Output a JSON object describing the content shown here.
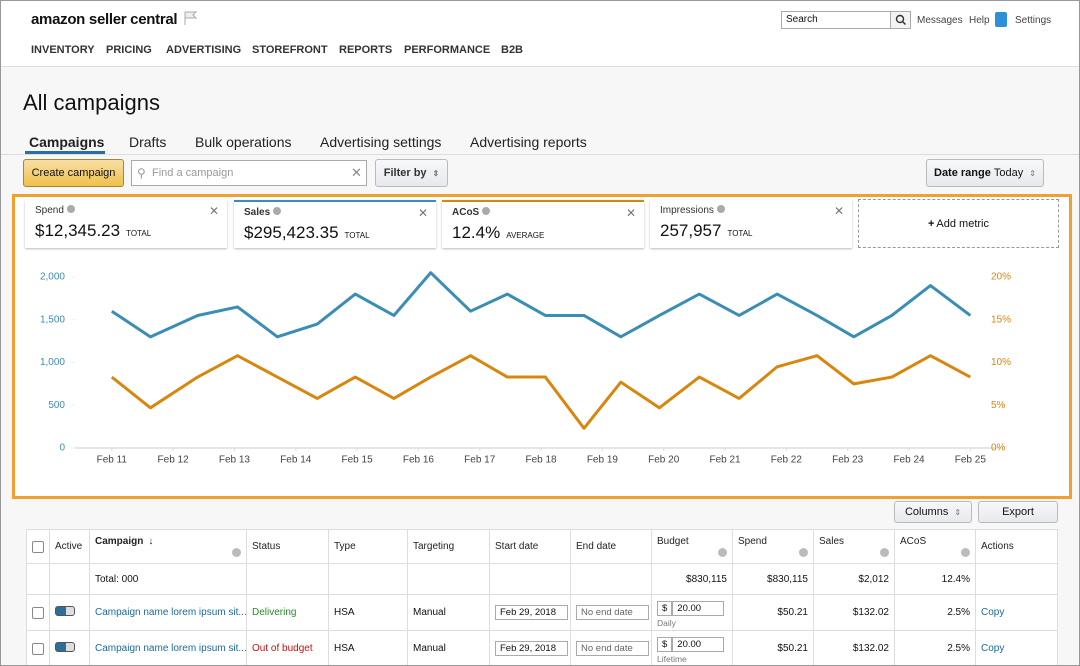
{
  "header": {
    "logo": "amazon seller central",
    "search_placeholder": "Search",
    "links": [
      "Messages",
      "Help",
      "Settings"
    ]
  },
  "nav": [
    "INVENTORY",
    "PRICING",
    "ADVERTISING",
    "STOREFRONT",
    "REPORTS",
    "PERFORMANCE",
    "B2B"
  ],
  "page_title": "All campaigns",
  "tabs": [
    "Campaigns",
    "Drafts",
    "Bulk operations",
    "Advertising settings",
    "Advertising reports"
  ],
  "toolbar": {
    "create": "Create campaign",
    "find_placeholder": "Find a campaign",
    "filter": "Filter by",
    "date_range_label": "Date range",
    "date_range_value": "Today"
  },
  "metrics": [
    {
      "name": "Spend",
      "value": "$12,345.23",
      "kind": "TOTAL"
    },
    {
      "name": "Sales",
      "value": "$295,423.35",
      "kind": "TOTAL"
    },
    {
      "name": "ACoS",
      "value": "12.4%",
      "kind": "AVERAGE"
    },
    {
      "name": "Impressions",
      "value": "257,957",
      "kind": "TOTAL"
    }
  ],
  "add_metric": "Add metric",
  "chart_data": {
    "type": "line",
    "x": [
      11.0,
      11.63,
      12.4,
      13.05,
      13.7,
      14.35,
      14.97,
      15.6,
      16.2,
      16.85,
      17.45,
      18.07,
      18.7,
      19.3,
      19.93,
      20.58,
      21.23,
      21.85,
      22.5,
      23.1,
      23.72,
      24.35,
      25.0
    ],
    "xlim": [
      10.4,
      25.5
    ],
    "xticks": [
      {
        "value": 11,
        "label": "Feb 11"
      },
      {
        "value": 12,
        "label": "Feb 12"
      },
      {
        "value": 13,
        "label": "Feb 13"
      },
      {
        "value": 14,
        "label": "Feb 14"
      },
      {
        "value": 15,
        "label": "Feb 15"
      },
      {
        "value": 16,
        "label": "Feb 16"
      },
      {
        "value": 17,
        "label": "Feb 17"
      },
      {
        "value": 18,
        "label": "Feb 18"
      },
      {
        "value": 19,
        "label": "Feb 19"
      },
      {
        "value": 20,
        "label": "Feb 20"
      },
      {
        "value": 21,
        "label": "Feb 21"
      },
      {
        "value": 22,
        "label": "Feb 22"
      },
      {
        "value": 23,
        "label": "Feb 23"
      },
      {
        "value": 24,
        "label": "Feb 24"
      },
      {
        "value": 25,
        "label": "Feb 25"
      }
    ],
    "ylim": [
      0,
      2000
    ],
    "yticks": [
      0,
      500,
      {
        "value": 1000,
        "label": "1,000"
      },
      {
        "value": 1500,
        "label": "1,500"
      },
      {
        "value": 2000,
        "label": "2,000"
      }
    ],
    "y2lim": [
      0,
      20
    ],
    "y2ticks": [
      {
        "value": 0,
        "label": "0%"
      },
      {
        "value": 5,
        "label": "5%"
      },
      {
        "value": 10,
        "label": "10%"
      },
      {
        "value": 15,
        "label": "15%"
      },
      {
        "value": 20,
        "label": "20%"
      }
    ],
    "grid": false,
    "series": [
      {
        "color": "#3a8db5",
        "axis": "y",
        "values": [
          1600,
          1300,
          1550,
          1650,
          1300,
          1450,
          1800,
          1550,
          2050,
          1600,
          1800,
          1550,
          1550,
          1300,
          1550,
          1800,
          1550,
          1800,
          1550,
          1300,
          1550,
          1900,
          1550
        ]
      },
      {
        "color": "#d9860f",
        "axis": "y2",
        "values": [
          8.3,
          4.7,
          8.3,
          10.8,
          8.3,
          5.8,
          8.3,
          5.8,
          8.3,
          10.8,
          8.3,
          8.3,
          2.3,
          7.7,
          4.7,
          8.3,
          5.8,
          9.5,
          10.8,
          7.5,
          8.3,
          10.8,
          8.3
        ]
      }
    ]
  },
  "table_buttons": [
    "Columns",
    "Export"
  ],
  "table": {
    "headers": [
      "Active",
      "Campaign",
      "Status",
      "Type",
      "Targeting",
      "Start date",
      "End date",
      "Budget",
      "Spend",
      "Sales",
      "ACoS",
      "Actions"
    ],
    "totals": {
      "label": "Total: 000",
      "budget": "$830,115",
      "spend": "$830,115",
      "sales": "$2,012",
      "acos": "12.4%"
    },
    "rows": [
      {
        "campaign": "Campaign name lorem ipsum sit...",
        "status": "Delivering",
        "type": "HSA",
        "targeting": "Manual",
        "start_date": "Feb 29, 2018",
        "end_date": "No end date",
        "currency": "$",
        "budget": "20.00",
        "period": "Daily",
        "spend": "$50.21",
        "sales": "$132.02",
        "acos": "2.5%",
        "action": "Copy"
      },
      {
        "campaign": "Campaign name lorem ipsum sit...",
        "status": "Out of budget",
        "type": "HSA",
        "targeting": "Manual",
        "start_date": "Feb 29, 2018",
        "end_date": "No end date",
        "currency": "$",
        "budget": "20.00",
        "period": "Lifetime",
        "spend": "$50.21",
        "sales": "$132.02",
        "acos": "2.5%",
        "action": "Copy"
      }
    ]
  }
}
